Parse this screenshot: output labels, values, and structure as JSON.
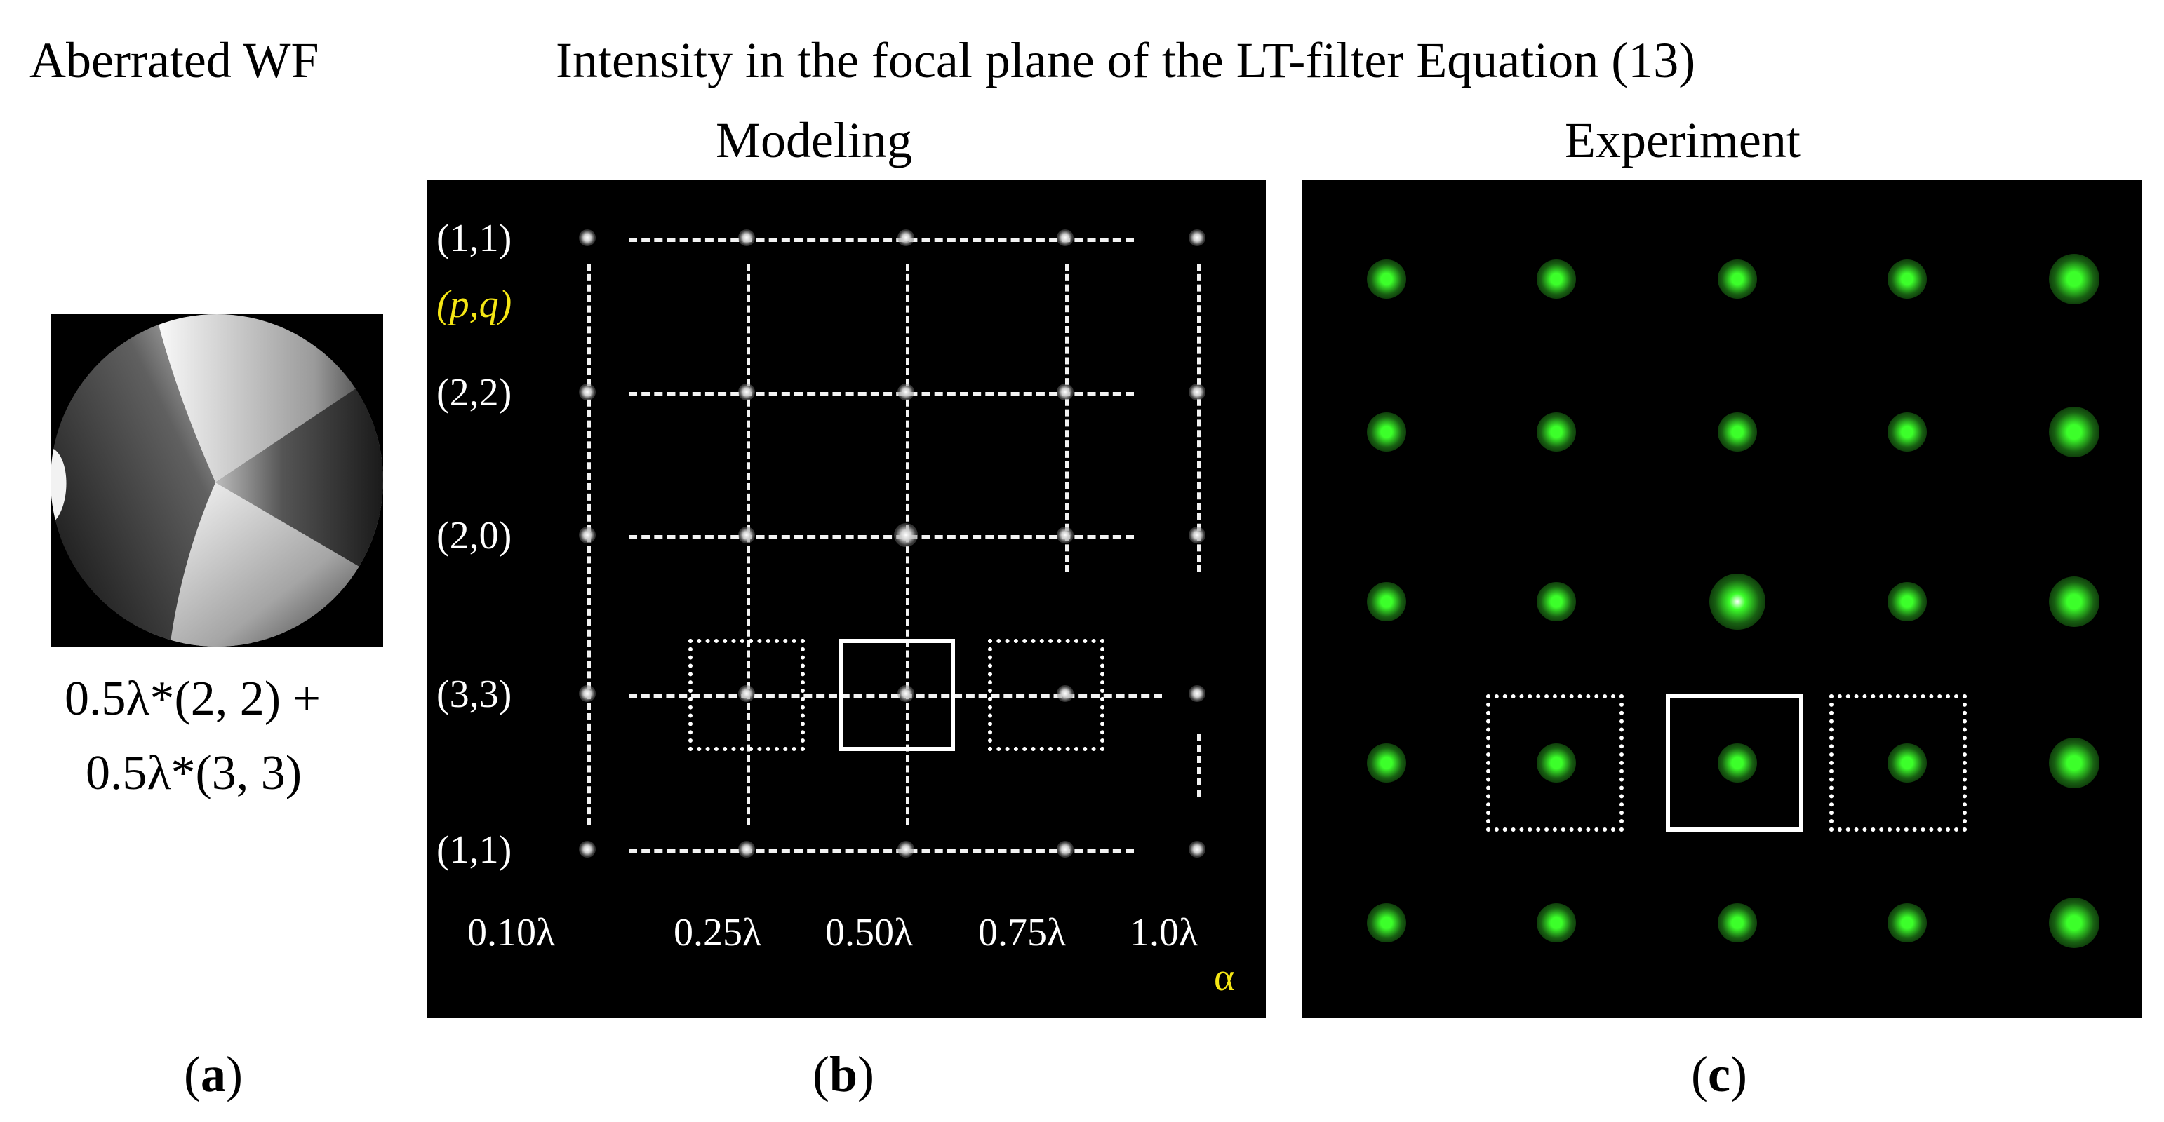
{
  "headers": {
    "aberrated_wf": "Aberrated WF",
    "main_title": "Intensity in the focal plane of the LT-filter Equation (13)",
    "modeling": "Modeling",
    "experiment": "Experiment"
  },
  "panel_a": {
    "formula_line1": "0.5λ*(2, 2) +",
    "formula_line2": "0.5λ*(3, 3)"
  },
  "panel_b": {
    "row_labels": [
      "(1,1)",
      "(2,2)",
      "(2,0)",
      "(3,3)",
      "(1,1)"
    ],
    "pq_label": "(p,q)",
    "col_labels": [
      "0.10λ",
      "0.25λ",
      "0.50λ",
      "0.75λ",
      "1.0λ"
    ],
    "alpha_label": "α"
  },
  "captions": {
    "a": "a",
    "b": "b",
    "c": "c"
  },
  "colors": {
    "green_spot": "#3cff2a",
    "yellow_label": "#f5e614"
  }
}
